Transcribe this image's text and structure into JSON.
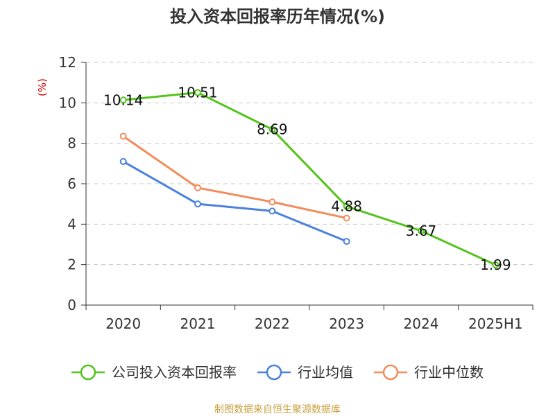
{
  "chart_data": {
    "type": "line",
    "title": "投入资本回报率历年情况(%)",
    "ylabel": "(%)",
    "categories": [
      "2020",
      "2021",
      "2022",
      "2023",
      "2024",
      "2025H1"
    ],
    "ylim": [
      0,
      12
    ],
    "yticks": [
      0,
      2,
      4,
      6,
      8,
      10,
      12
    ],
    "grid": true,
    "legend_position": "bottom",
    "series": [
      {
        "name": "公司投入资本回报率",
        "color": "#52c41a",
        "values": [
          10.14,
          10.51,
          8.69,
          4.88,
          3.67,
          1.99
        ],
        "labels": [
          "10.14",
          "10.51",
          "8.69",
          "4.88",
          "3.67",
          "1.99"
        ]
      },
      {
        "name": "行业均值",
        "color": "#4a80de",
        "values": [
          7.1,
          5.0,
          4.65,
          3.15,
          null,
          null
        ]
      },
      {
        "name": "行业中位数",
        "color": "#f28c5a",
        "values": [
          8.35,
          5.8,
          5.1,
          4.3,
          null,
          null
        ]
      }
    ]
  },
  "source": "制图数据来自恒生聚源数据库"
}
